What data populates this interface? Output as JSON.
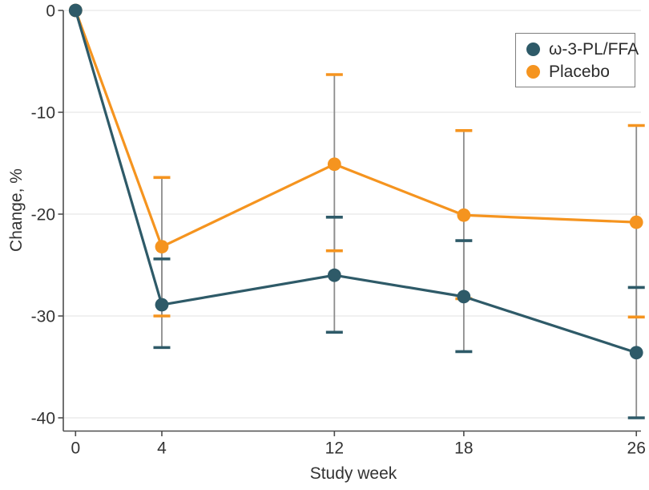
{
  "chart_data": {
    "type": "line",
    "title": "",
    "xlabel": "Study week",
    "ylabel": "Change, %",
    "x": [
      0,
      4,
      12,
      18,
      26
    ],
    "x_ticks": [
      0,
      4,
      12,
      18,
      26
    ],
    "y_ticks": [
      0,
      -10,
      -20,
      -30,
      -40
    ],
    "xlim": [
      0,
      26
    ],
    "ylim": [
      -40,
      0
    ],
    "grid": "horizontal",
    "legend_position": "top-right",
    "series": [
      {
        "name": "ω-3-PL/FFA",
        "color": "#2E5A68",
        "values": [
          0,
          -28.9,
          -26.0,
          -28.1,
          -33.6
        ],
        "error_high": [
          null,
          -24.4,
          -20.3,
          -22.6,
          -27.2
        ],
        "error_low": [
          null,
          -33.1,
          -31.6,
          -33.5,
          -40.0
        ]
      },
      {
        "name": "Placebo",
        "color": "#F5941F",
        "values": [
          0,
          -23.2,
          -15.1,
          -20.1,
          -20.8
        ],
        "error_high": [
          null,
          -16.4,
          -6.3,
          -11.8,
          -11.3
        ],
        "error_low": [
          null,
          -30.0,
          -23.6,
          -28.3,
          -30.1
        ]
      }
    ],
    "error_bar_line_color": "#8C8C8C",
    "grid_color": "#E6E6E6",
    "axis_color": "#4D4D4D",
    "text_color": "#333333"
  }
}
